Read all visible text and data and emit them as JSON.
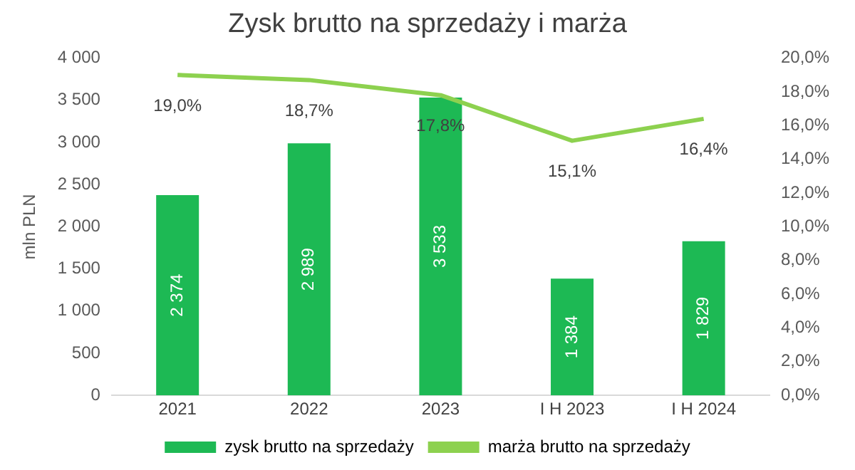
{
  "chart_data": {
    "type": "bar",
    "title": "Zysk brutto na sprzedaży i marża",
    "ylabel": "mln PLN",
    "categories": [
      "2021",
      "2022",
      "2023",
      "I H 2023",
      "I H 2024"
    ],
    "series": [
      {
        "name": "zysk brutto na sprzedaży",
        "color": "#1db954",
        "values": [
          2374,
          2989,
          3533,
          1384,
          1829
        ],
        "value_labels": [
          "2 374",
          "2 989",
          "3 533",
          "1 384",
          "1 829"
        ]
      },
      {
        "name": "marża brutto na sprzedaży",
        "type": "line",
        "axis": "y2",
        "color": "#8dd14f",
        "values": [
          19.0,
          18.7,
          17.8,
          15.1,
          16.4
        ],
        "value_labels": [
          "19,0%",
          "18,7%",
          "17,8%",
          "15,1%",
          "16,4%"
        ]
      }
    ],
    "ylim": [
      0,
      4000
    ],
    "yticks": [
      {
        "value": 0,
        "label": "0"
      },
      {
        "value": 500,
        "label": "500"
      },
      {
        "value": 1000,
        "label": "1 000"
      },
      {
        "value": 1500,
        "label": "1 500"
      },
      {
        "value": 2000,
        "label": "2 000"
      },
      {
        "value": 2500,
        "label": "2 500"
      },
      {
        "value": 3000,
        "label": "3 000"
      },
      {
        "value": 3500,
        "label": "3 500"
      },
      {
        "value": 4000,
        "label": "4 000"
      }
    ],
    "y2lim": [
      0,
      20
    ],
    "y2ticks": [
      {
        "value": 0,
        "label": "0,0%"
      },
      {
        "value": 2,
        "label": "2,0%"
      },
      {
        "value": 4,
        "label": "4,0%"
      },
      {
        "value": 6,
        "label": "6,0%"
      },
      {
        "value": 8,
        "label": "8,0%"
      },
      {
        "value": 10,
        "label": "10,0%"
      },
      {
        "value": 12,
        "label": "12,0%"
      },
      {
        "value": 14,
        "label": "14,0%"
      },
      {
        "value": 16,
        "label": "16,0%"
      },
      {
        "value": 18,
        "label": "18,0%"
      },
      {
        "value": 20,
        "label": "20,0%"
      }
    ],
    "grid": false,
    "legend": "bottom",
    "marker": "none"
  }
}
